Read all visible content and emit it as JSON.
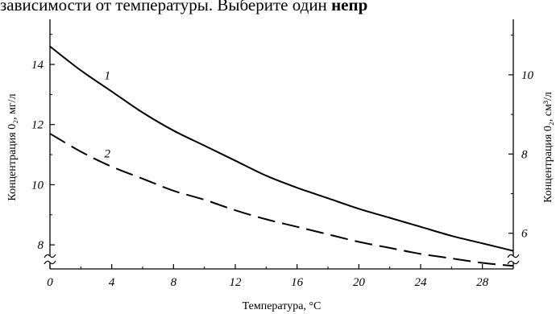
{
  "header_text": {
    "before_bold": "зависимости от температуры. Выберите один ",
    "bold": "непр"
  },
  "chart_data": {
    "type": "line",
    "xlabel": "Температура, °С",
    "ylabel_left": "Концентрация 0₂, мг/л",
    "ylabel_right": "Концентрация 0₂, см³/л",
    "xlim": [
      0,
      30
    ],
    "x_ticks": [
      0,
      4,
      8,
      12,
      16,
      20,
      24,
      28
    ],
    "ylim_left": [
      7.2,
      15.5
    ],
    "y_ticks_left": [
      8,
      10,
      12,
      14
    ],
    "ylim_right": [
      5.1,
      11.4
    ],
    "y_ticks_right": [
      6,
      8,
      10
    ],
    "grid": false,
    "series": [
      {
        "name": "1",
        "style": "solid",
        "x": [
          0,
          2,
          4,
          6,
          8,
          10,
          12,
          14,
          16,
          18,
          20,
          22,
          24,
          26,
          28,
          30
        ],
        "y": [
          14.6,
          13.8,
          13.1,
          12.4,
          11.8,
          11.3,
          10.8,
          10.3,
          9.9,
          9.55,
          9.2,
          8.9,
          8.6,
          8.3,
          8.05,
          7.8
        ]
      },
      {
        "name": "2",
        "style": "dashed",
        "x": [
          0,
          2,
          4,
          6,
          8,
          10,
          12,
          14,
          16,
          18,
          20,
          22,
          24,
          26,
          28,
          30
        ],
        "y": [
          11.7,
          11.1,
          10.6,
          10.2,
          9.8,
          9.5,
          9.15,
          8.85,
          8.6,
          8.35,
          8.1,
          7.9,
          7.7,
          7.55,
          7.4,
          7.3
        ]
      }
    ]
  }
}
